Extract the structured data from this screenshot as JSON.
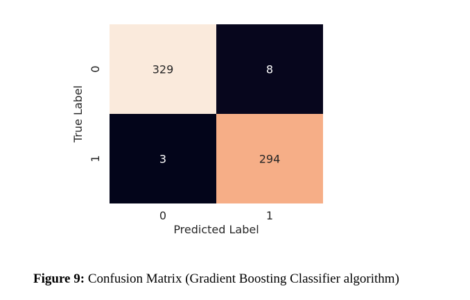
{
  "chart_data": {
    "type": "heatmap",
    "title": "",
    "xlabel": "Predicted Label",
    "ylabel": "True Label",
    "x_categories": [
      "0",
      "1"
    ],
    "y_categories": [
      "0",
      "1"
    ],
    "values": [
      [
        329,
        8
      ],
      [
        3,
        294
      ]
    ],
    "colorbar": false,
    "colors": {
      "high": "#faeadc",
      "mid_high": "#f6bf9f",
      "low": "#03051a",
      "text_on_light": "#262626",
      "text_on_dark": "#ffffff"
    }
  },
  "caption": {
    "label": "Figure 9:",
    "text": " Confusion Matrix (Gradient Boosting Classifier algorithm)"
  }
}
